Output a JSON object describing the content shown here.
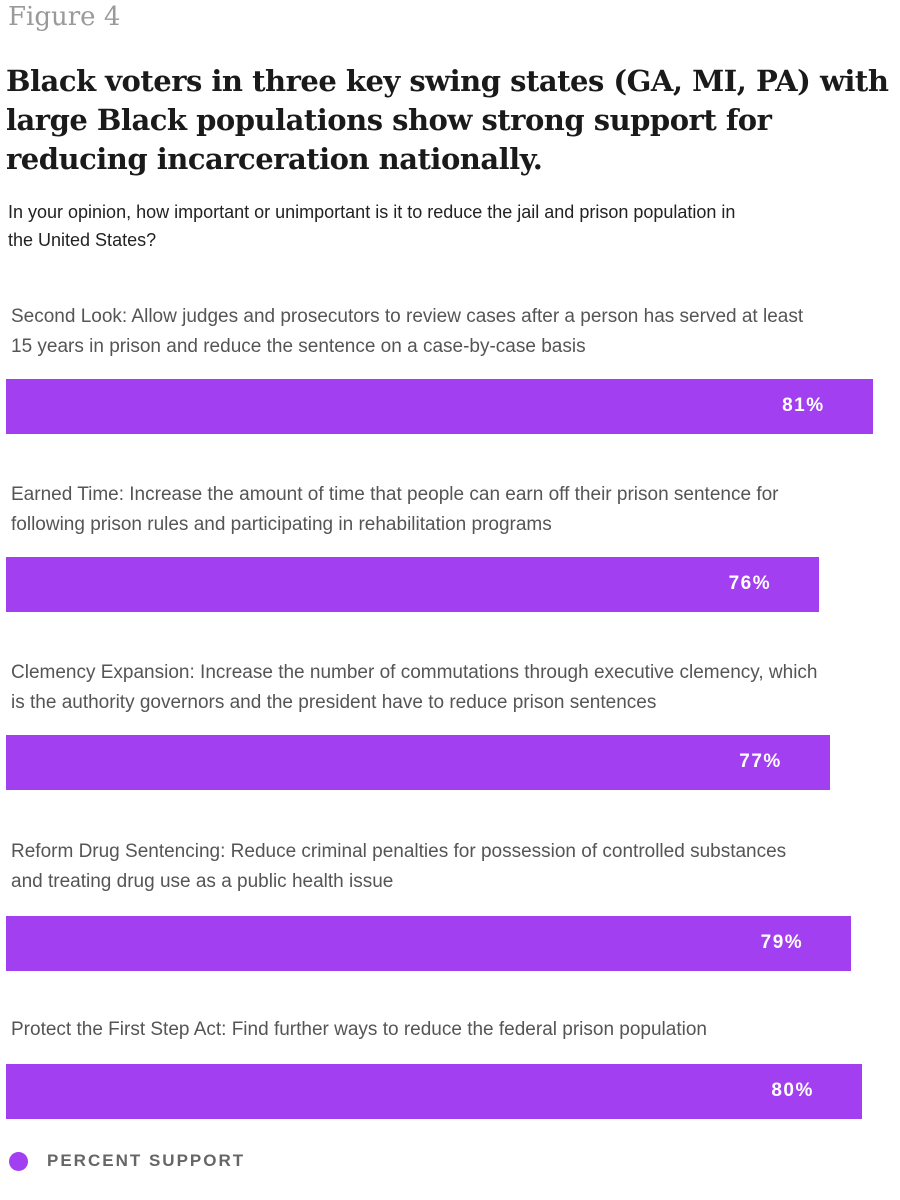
{
  "chart_data": {
    "type": "bar",
    "orientation": "horizontal",
    "figure_label": "Figure 4",
    "title": "Black voters in three key swing states (GA, MI, PA) with large Black populations show strong support for reducing incarceration nationally.",
    "subtitle": "In your opinion, how important or unimportant is it to reduce the jail and prison population in the United States?",
    "categories": [
      "Second Look: Allow judges and prosecutors to review cases after a person has served at least 15 years in prison and reduce the sentence on a case-by-case basis",
      "Earned Time: Increase the amount of time that people can earn off their prison sentence for following prison rules and participating in rehabilitation programs",
      "Clemency Expansion: Increase the number of commutations through executive clemency, which is the authority governors and the president have to reduce prison sentences",
      "Reform Drug Sentencing: Reduce criminal penalties for possession of controlled substances and treating drug use as a public health issue",
      "Protect the First Step Act: Find further ways to reduce the federal prison population"
    ],
    "series": [
      {
        "name": "PERCENT SUPPORT",
        "color": "#a23ff0",
        "values": [
          81,
          76,
          77,
          79,
          80
        ],
        "value_labels": [
          "81%",
          "76%",
          "77%",
          "79%",
          "80%"
        ]
      }
    ],
    "xlim": [
      0,
      83
    ]
  }
}
